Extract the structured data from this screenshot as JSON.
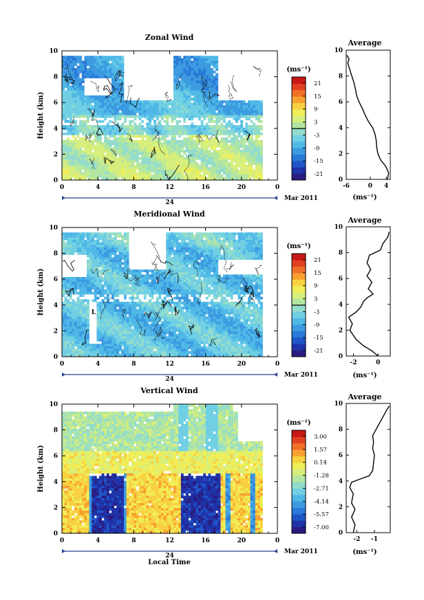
{
  "date_label": "Mar 2011",
  "day_label": "24",
  "xlabel": "Local Time",
  "avg_title": "Average",
  "cb_unit": "(ms⁻¹)",
  "avg_unit": "(ms⁻¹)",
  "palette": [
    "#2a1b80",
    "#1f33a8",
    "#1f55c8",
    "#2a7ad8",
    "#3c9ae0",
    "#4fb8e6",
    "#71cfe4",
    "#93dccc",
    "#b3e6a0",
    "#d6ee7c",
    "#f0ee58",
    "#f8d040",
    "#f8a030",
    "#f07028",
    "#e04020",
    "#c81818"
  ],
  "chart_data": [
    {
      "type": "heatmap",
      "title": "Zonal Wind",
      "ylabel": "Height (km)",
      "xlabel": "",
      "x_ticks": [
        "0",
        "4",
        "8",
        "12",
        "16",
        "20",
        "0"
      ],
      "y_ticks": [
        "0",
        "2",
        "4",
        "6",
        "8",
        "10"
      ],
      "xlim": [
        0,
        24
      ],
      "ylim": [
        0,
        10
      ],
      "colorbar_ticks": [
        "21",
        "15",
        "9",
        "3",
        "-3",
        "-9",
        "-15",
        "-21"
      ],
      "colorbar_range": [
        -24,
        24
      ],
      "colorbar_zero_line": true,
      "avg": {
        "xlim": [
          -6,
          5
        ],
        "x_ticks": [
          "-6",
          "0",
          "4"
        ],
        "y_ticks": [
          "0",
          "2",
          "4",
          "6",
          "8",
          "10"
        ],
        "profile": [
          [
            4.3,
            0
          ],
          [
            4.6,
            0.5
          ],
          [
            3.9,
            1.0
          ],
          [
            2.6,
            1.5
          ],
          [
            1.9,
            2.0
          ],
          [
            1.6,
            2.5
          ],
          [
            1.5,
            3.0
          ],
          [
            1.2,
            3.5
          ],
          [
            0.6,
            4.0
          ],
          [
            -0.5,
            4.5
          ],
          [
            -1.3,
            5.0
          ],
          [
            -2.0,
            5.5
          ],
          [
            -2.8,
            6.0
          ],
          [
            -3.4,
            6.5
          ],
          [
            -3.7,
            7.0
          ],
          [
            -4.1,
            7.5
          ],
          [
            -4.6,
            8.0
          ],
          [
            -5.1,
            8.5
          ],
          [
            -5.6,
            9.0
          ],
          [
            -5.3,
            9.3
          ],
          [
            -5.8,
            9.6
          ]
        ]
      }
    },
    {
      "type": "heatmap",
      "title": "Meridional Wind",
      "ylabel": "Height (km)",
      "xlabel": "",
      "x_ticks": [
        "0",
        "4",
        "8",
        "12",
        "16",
        "20",
        "0"
      ],
      "y_ticks": [
        "0",
        "2",
        "4",
        "6",
        "8",
        "10"
      ],
      "xlim": [
        0,
        24
      ],
      "ylim": [
        0,
        10
      ],
      "colorbar_ticks": [
        "21",
        "15",
        "9",
        "3",
        "-3",
        "-9",
        "-15",
        "-21"
      ],
      "colorbar_range": [
        -24,
        24
      ],
      "colorbar_zero_line": true,
      "avg": {
        "xlim": [
          -2.6,
          1.0
        ],
        "x_ticks": [
          "-2",
          "0"
        ],
        "y_ticks": [
          "0",
          "2",
          "4",
          "6",
          "8",
          "10"
        ],
        "profile": [
          [
            0,
            0
          ],
          [
            -0.5,
            0.4
          ],
          [
            -1.2,
            0.8
          ],
          [
            -1.8,
            1.3
          ],
          [
            -2.3,
            2.0
          ],
          [
            -2.1,
            2.5
          ],
          [
            -2.4,
            3.0
          ],
          [
            -1.8,
            3.4
          ],
          [
            -1.4,
            3.8
          ],
          [
            -1.2,
            4.2
          ],
          [
            -0.9,
            4.5
          ],
          [
            -0.4,
            4.8
          ],
          [
            -0.8,
            5.2
          ],
          [
            -0.5,
            5.7
          ],
          [
            -0.9,
            6.2
          ],
          [
            -0.6,
            6.7
          ],
          [
            -0.9,
            7.2
          ],
          [
            -0.7,
            7.8
          ],
          [
            0.2,
            8.2
          ],
          [
            0.4,
            8.7
          ],
          [
            0.8,
            9.2
          ],
          [
            0.9,
            9.6
          ]
        ]
      }
    },
    {
      "type": "heatmap",
      "title": "Vertical Wind",
      "ylabel": "Height (km)",
      "xlabel": "Local Time",
      "x_ticks": [
        "0",
        "4",
        "8",
        "12",
        "16",
        "20",
        "0"
      ],
      "y_ticks": [
        "0",
        "2",
        "4",
        "6",
        "8",
        "10"
      ],
      "xlim": [
        0,
        24
      ],
      "ylim": [
        0,
        10
      ],
      "colorbar_ticks": [
        "3.00",
        "1.57",
        "0.14",
        "-1.28",
        "-2.71",
        "-4.14",
        "-5.57",
        "-7.00"
      ],
      "colorbar_range": [
        -7.7,
        3.7
      ],
      "colorbar_zero_line": false,
      "avg": {
        "xlim": [
          -2.6,
          -0.1
        ],
        "x_ticks": [
          "-2",
          "-1"
        ],
        "y_ticks": [
          "0",
          "2",
          "4",
          "6",
          "8",
          "10"
        ],
        "profile": [
          [
            -2.2,
            0
          ],
          [
            -2.1,
            0.6
          ],
          [
            -2.3,
            1.2
          ],
          [
            -2.1,
            1.8
          ],
          [
            -2.3,
            2.3
          ],
          [
            -2.2,
            3.0
          ],
          [
            -2.4,
            3.5
          ],
          [
            -2.3,
            3.9
          ],
          [
            -1.9,
            4.1
          ],
          [
            -1.3,
            4.4
          ],
          [
            -1.1,
            4.8
          ],
          [
            -1.05,
            5.4
          ],
          [
            -1.0,
            6.0
          ],
          [
            -1.1,
            6.5
          ],
          [
            -1.05,
            7.0
          ],
          [
            -1.1,
            7.5
          ],
          [
            -0.9,
            8.0
          ],
          [
            -0.7,
            8.5
          ],
          [
            -0.5,
            9.0
          ],
          [
            -0.3,
            9.5
          ],
          [
            -0.15,
            9.8
          ]
        ]
      }
    }
  ]
}
